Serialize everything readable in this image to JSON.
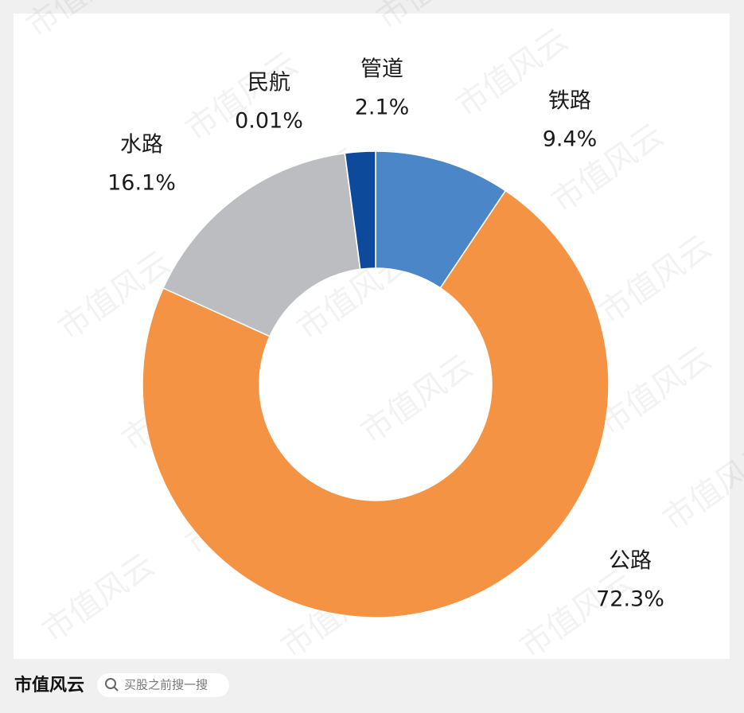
{
  "chart_data": {
    "type": "donut",
    "categories": [
      "铁路",
      "公路",
      "水路",
      "民航",
      "管道"
    ],
    "values": [
      9.4,
      72.3,
      16.1,
      0.01,
      2.1
    ],
    "value_labels": [
      "9.4%",
      "72.3%",
      "16.1%",
      "0.01%",
      "2.1%"
    ],
    "colors": [
      "#4a86c8",
      "#f59344",
      "#bcbdc1",
      "#1f5fae",
      "#0d4a9c"
    ]
  },
  "footer": {
    "brand": "市值风云",
    "search": "买股之前搜一搜"
  }
}
